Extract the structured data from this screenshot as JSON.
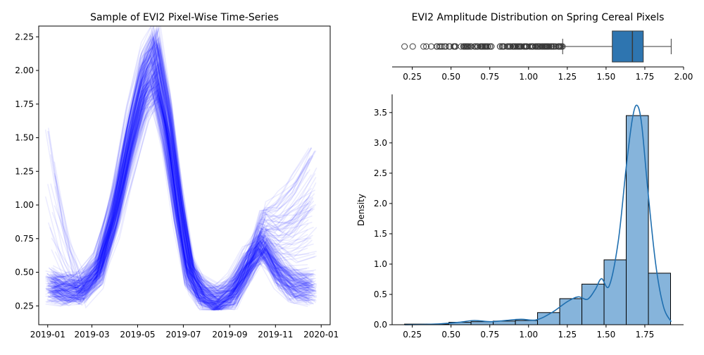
{
  "figure": {
    "left_title": "Sample of EVI2 Pixel-Wise Time-Series",
    "right_title": "EVI2 Amplitude Distribution on Spring Cereal Pixels"
  },
  "chart_data": [
    {
      "type": "line",
      "title": "Sample of EVI2 Pixel-Wise Time-Series",
      "xlabel": "",
      "ylabel": "",
      "x_ticks": [
        "2019-01",
        "2019-03",
        "2019-05",
        "2019-07",
        "2019-09",
        "2019-11",
        "2020-01"
      ],
      "y_ticks": [
        "0.25",
        "0.50",
        "0.75",
        "1.00",
        "1.25",
        "1.50",
        "1.75",
        "2.00",
        "2.25"
      ],
      "xlim": [
        "2018-12-20",
        "2020-01-13"
      ],
      "ylim": [
        0.11,
        2.33
      ],
      "line_color": "#0000ff",
      "line_alpha": 0.08,
      "series_count": 220,
      "mean_profile": {
        "dates": [
          "2019-01-05",
          "2019-01-25",
          "2019-02-15",
          "2019-03-10",
          "2019-04-01",
          "2019-04-20",
          "2019-05-10",
          "2019-05-25",
          "2019-06-10",
          "2019-06-25",
          "2019-07-10",
          "2019-07-25",
          "2019-08-15",
          "2019-09-05",
          "2019-09-25",
          "2019-10-15",
          "2019-11-05",
          "2019-11-25",
          "2019-12-20"
        ],
        "values": [
          0.4,
          0.38,
          0.38,
          0.52,
          0.95,
          1.45,
          1.9,
          2.05,
          1.6,
          1.0,
          0.5,
          0.35,
          0.28,
          0.35,
          0.55,
          0.7,
          0.5,
          0.4,
          0.38
        ]
      },
      "grid": false
    },
    {
      "type": "box",
      "title": "EVI2 Amplitude Distribution on Spring Cereal Pixels",
      "x_ticks": [
        "0.25",
        "0.50",
        "0.75",
        "1.00",
        "1.25",
        "1.50",
        "1.75",
        "2.00"
      ],
      "xlim": [
        0.12,
        2.0
      ],
      "whisker_low": 1.22,
      "q1": 1.54,
      "median": 1.67,
      "q3": 1.74,
      "whisker_high": 1.92,
      "outliers_range": [
        0.2,
        1.22
      ],
      "box_color": "#2e75b0"
    },
    {
      "type": "histogram",
      "title": "",
      "xlabel": "",
      "ylabel": "Density",
      "x_ticks": [
        "0.25",
        "0.50",
        "0.75",
        "1.00",
        "1.25",
        "1.50",
        "1.75"
      ],
      "y_ticks": [
        "0.0",
        "0.5",
        "1.0",
        "1.5",
        "2.0",
        "2.5",
        "3.0",
        "3.5"
      ],
      "xlim": [
        0.12,
        2.0
      ],
      "ylim": [
        0,
        3.8
      ],
      "bin_edges": [
        0.2,
        0.343,
        0.486,
        0.629,
        0.772,
        0.915,
        1.058,
        1.201,
        1.344,
        1.487,
        1.63,
        1.773,
        1.916
      ],
      "values": [
        0.01,
        0.01,
        0.04,
        0.05,
        0.06,
        0.07,
        0.2,
        0.43,
        0.67,
        1.07,
        3.45,
        0.85
      ],
      "bar_color": "#86b4db",
      "kde": {
        "x": [
          0.2,
          0.4,
          0.55,
          0.65,
          0.75,
          0.85,
          0.95,
          1.05,
          1.15,
          1.25,
          1.32,
          1.38,
          1.43,
          1.47,
          1.52,
          1.58,
          1.63,
          1.67,
          1.7,
          1.73,
          1.77,
          1.82,
          1.87,
          1.92
        ],
        "y": [
          0.0,
          0.01,
          0.04,
          0.07,
          0.05,
          0.07,
          0.09,
          0.08,
          0.2,
          0.38,
          0.46,
          0.42,
          0.58,
          0.76,
          0.64,
          1.4,
          2.6,
          3.4,
          3.62,
          3.3,
          2.2,
          1.0,
          0.3,
          0.05
        ]
      },
      "kde_color": "#1f6fb0"
    }
  ]
}
